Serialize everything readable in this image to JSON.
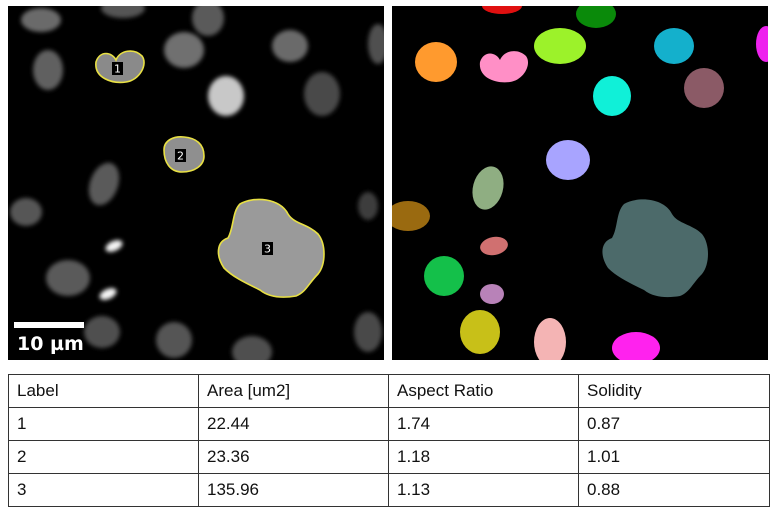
{
  "left_image": {
    "scale_bar": "10 µm",
    "roi_labels": [
      "1",
      "2",
      "3"
    ],
    "outline_color": "#e8e044"
  },
  "right_image": {
    "mask_colors": [
      "#ff9a2e",
      "#ff8fc6",
      "#9cf22a",
      "#0a8a0a",
      "#e01010",
      "#14b0cc",
      "#ee22ee",
      "#10f0d8",
      "#8b5a66",
      "#a8a4ff",
      "#8fae82",
      "#9a6a10",
      "#d07070",
      "#14c04a",
      "#b882b8",
      "#4c6a6a",
      "#c8c018",
      "#f4b4b4",
      "#ff22ee"
    ]
  },
  "table": {
    "headers": [
      "Label",
      "Area [um2]",
      "Aspect Ratio",
      "Solidity"
    ],
    "rows": [
      [
        "1",
        "22.44",
        "1.74",
        "0.87"
      ],
      [
        "2",
        "23.36",
        "1.18",
        "1.01"
      ],
      [
        "3",
        "135.96",
        "1.13",
        "0.88"
      ]
    ]
  }
}
